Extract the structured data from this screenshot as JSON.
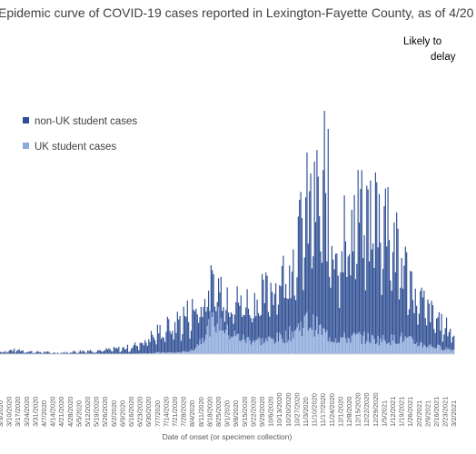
{
  "chart_data": {
    "type": "bar",
    "stacked": true,
    "title": "Epidemic curve of COVID-19 cases reported in Lexington-Fayette County, as of 4/20",
    "annotation_line1": "Likely to",
    "annotation_line2": "delay",
    "xlabel": "Date of onset (or specimen collection)",
    "ylabel": "",
    "legend_position": "top-left",
    "grid": false,
    "series": [
      {
        "name": "non-UK student cases",
        "color": "#2f4f94"
      },
      {
        "name": "UK student cases",
        "color": "#8eaadb"
      }
    ],
    "x_start": "2020-03-03",
    "x_end": "2021-03-02",
    "tick_labels": [
      "3/3/2020",
      "3/10/2020",
      "3/17/2020",
      "3/24/2020",
      "3/31/2020",
      "4/7/2020",
      "4/14/2020",
      "4/21/2020",
      "4/28/2020",
      "5/5/2020",
      "5/12/2020",
      "5/19/2020",
      "5/26/2020",
      "6/2/2020",
      "6/9/2020",
      "6/16/2020",
      "6/23/2020",
      "6/30/2020",
      "7/7/2020",
      "7/14/2020",
      "7/21/2020",
      "7/28/2020",
      "8/4/2020",
      "8/11/2020",
      "8/18/2020",
      "8/25/2020",
      "9/1/2020",
      "9/8/2020",
      "9/15/2020",
      "9/22/2020",
      "9/29/2020",
      "10/6/2020",
      "10/13/2020",
      "10/20/2020",
      "10/27/2020",
      "11/3/2020",
      "11/10/2020",
      "11/17/2020",
      "11/24/2020",
      "12/1/2020",
      "12/8/2020",
      "12/15/2020",
      "12/22/2020",
      "12/29/2020",
      "1/5/2021",
      "1/12/2021",
      "1/19/2021",
      "1/26/2021",
      "2/2/2021",
      "2/9/2021",
      "2/16/2021",
      "2/23/2021",
      "3/2/2021"
    ],
    "ylim": [
      0,
      350
    ],
    "weekly_avg_non_uk": [
      3,
      5,
      6,
      4,
      3,
      3,
      2,
      2,
      3,
      4,
      5,
      5,
      6,
      7,
      8,
      10,
      15,
      22,
      28,
      35,
      40,
      50,
      55,
      52,
      50,
      48,
      50,
      48,
      52,
      55,
      62,
      72,
      85,
      100,
      120,
      150,
      180,
      170,
      150,
      140,
      150,
      165,
      170,
      185,
      175,
      140,
      110,
      80,
      65,
      50,
      40,
      30,
      25
    ],
    "weekly_avg_uk": [
      0,
      0,
      0,
      0,
      0,
      0,
      0,
      0,
      0,
      0,
      0,
      0,
      0,
      0,
      0,
      0,
      1,
      1,
      2,
      2,
      2,
      3,
      5,
      20,
      40,
      48,
      30,
      25,
      20,
      20,
      18,
      20,
      22,
      26,
      35,
      45,
      40,
      30,
      22,
      22,
      22,
      24,
      22,
      20,
      20,
      20,
      22,
      18,
      14,
      12,
      10,
      8,
      6
    ],
    "peak_points": [
      {
        "date": "2020-11-18",
        "total": 335
      },
      {
        "date": "2020-11-21",
        "total": 310
      },
      {
        "date": "2020-11-10",
        "total": 265
      },
      {
        "date": "2020-12-29",
        "total": 250
      },
      {
        "date": "2021-01-08",
        "total": 230
      }
    ]
  }
}
